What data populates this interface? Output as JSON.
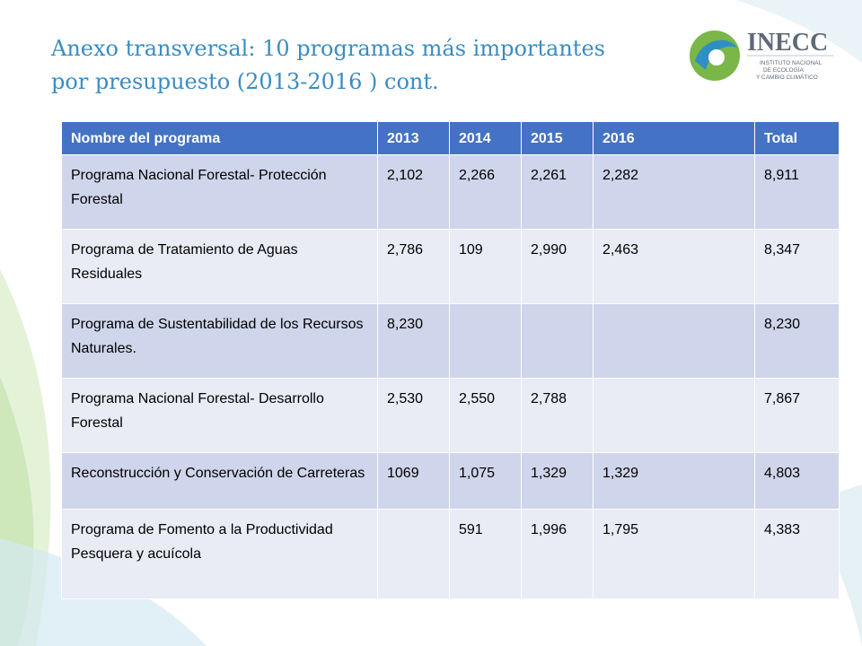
{
  "header": {
    "title_lines": [
      "Anexo transversal: 10 programas más importantes",
      "por presupuesto (2013-2016 )  cont."
    ]
  },
  "logo": {
    "name": "INECC",
    "subtitle_lines": [
      "INSTITUTO NACIONAL",
      "DE ECOLOGÍA",
      "Y CAMBIO CLIMÁTICO"
    ]
  },
  "table": {
    "columns": [
      "Nombre del programa",
      "2013",
      "2014",
      "2015",
      "2016",
      "Total"
    ],
    "rows": [
      [
        "Programa Nacional Forestal- Protección Forestal",
        "2,102",
        "2,266",
        "2,261",
        "2,282",
        "8,911"
      ],
      [
        "Programa de Tratamiento de Aguas Residuales",
        "2,786",
        "109",
        "2,990",
        "2,463",
        "8,347"
      ],
      [
        "Programa de Sustentabilidad de los Recursos Naturales.",
        "8,230",
        null,
        null,
        null,
        "8,230"
      ],
      [
        "Programa Nacional Forestal- Desarrollo Forestal",
        "2,530",
        "2,550",
        "2,788",
        null,
        "7,867"
      ],
      [
        "Reconstrucción y Conservación de Carreteras",
        "1069",
        "1,075",
        "1,329",
        "1,329",
        "4,803"
      ],
      [
        "Programa de Fomento a la Productividad\nPesquera y acuícola",
        null,
        "591",
        "1,996",
        "1,795",
        "4,383"
      ]
    ]
  }
}
